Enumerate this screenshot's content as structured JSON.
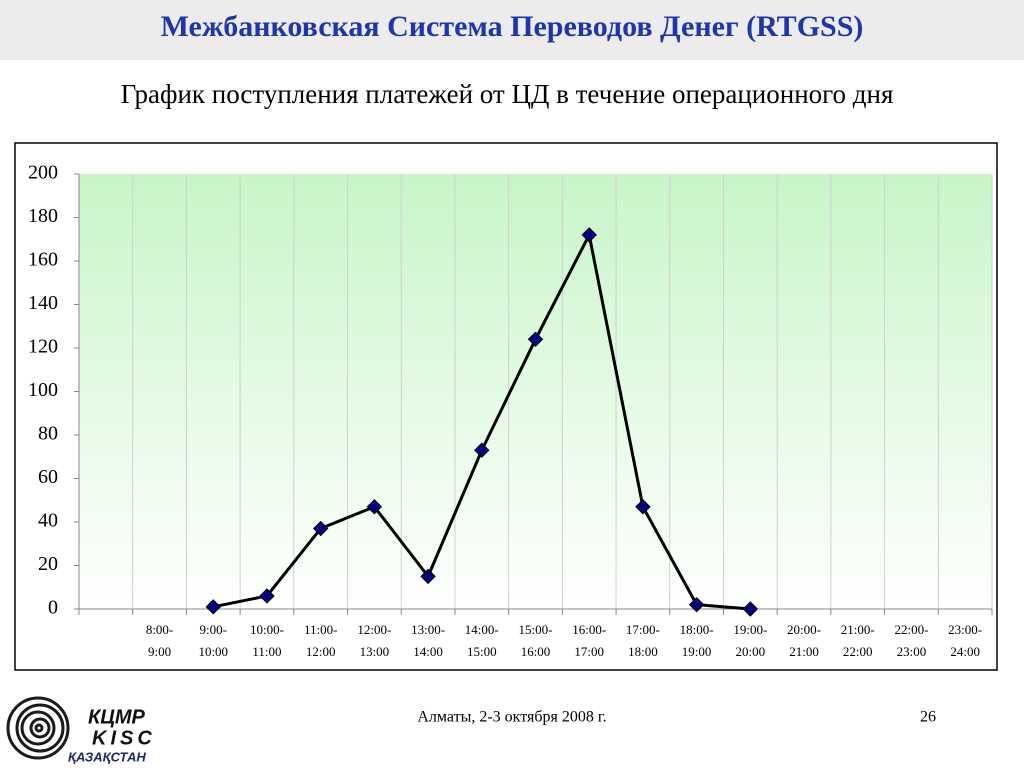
{
  "header": {
    "title": "Межбанковская Система Переводов Денег (RTGSS)"
  },
  "chart_data": {
    "type": "line",
    "title": "График поступления платежей от ЦД в течение операционного дня",
    "categories": [
      null,
      "8:00-9:00",
      "9:00-10:00",
      "10:00-11:00",
      "11:00-12:00",
      "12:00-13:00",
      "13:00-14:00",
      "14:00-15:00",
      "15:00-16:00",
      "16:00-17:00",
      "17:00-18:00",
      "18:00-19:00",
      "19:00-20:00",
      "20:00-21:00",
      "21:00-22:00",
      "22:00-23:00",
      "23:00-24:00"
    ],
    "values": [
      null,
      null,
      1,
      6,
      37,
      47,
      15,
      73,
      124,
      172,
      47,
      2,
      0,
      null,
      null,
      null,
      null
    ],
    "color": "#000000",
    "marker_color": "#000080",
    "ylim": [
      0,
      200
    ],
    "yticks": [
      0,
      20,
      40,
      60,
      80,
      100,
      120,
      140,
      160,
      180,
      200
    ],
    "grid": true
  },
  "footer": {
    "place": "Алматы, 2-3 октября 2008 г.",
    "page": "26"
  },
  "logo": {
    "line1": "КЦМР",
    "line2": "KISC",
    "line3": "ҚАЗАҚСТАН"
  }
}
